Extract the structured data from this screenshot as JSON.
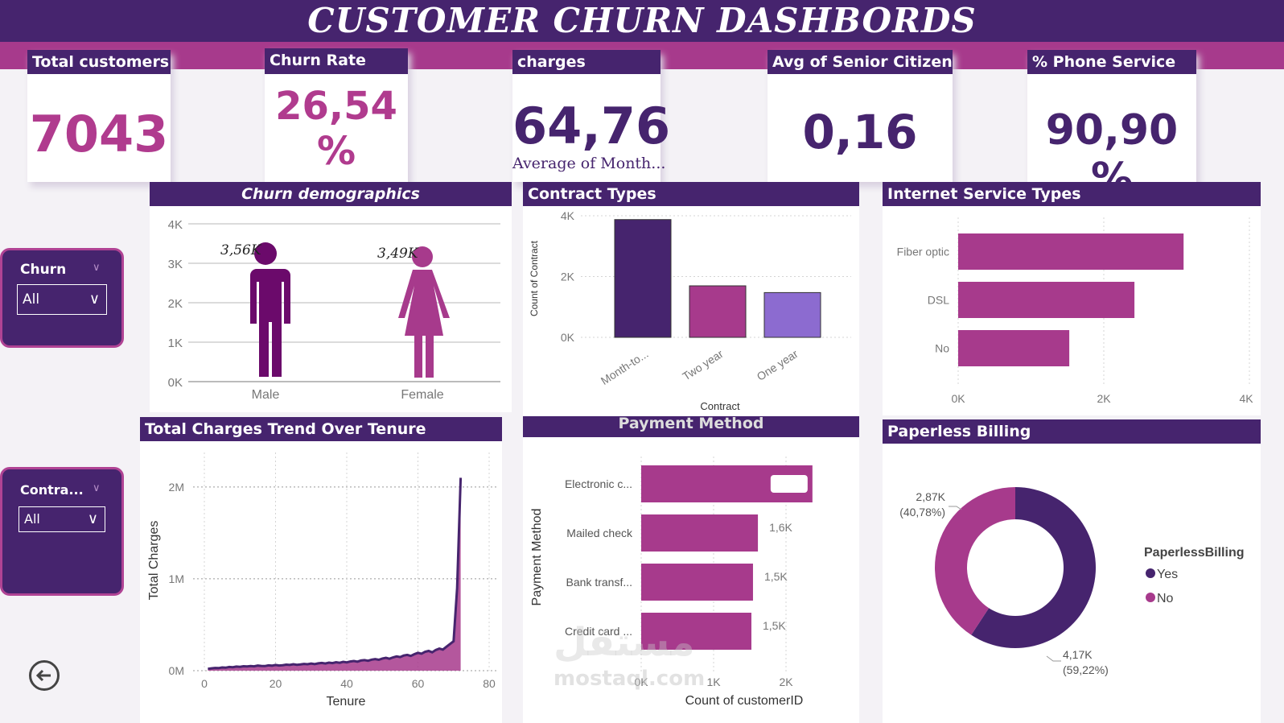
{
  "title": "CUSTOMER CHURN DASHBORDS",
  "kpis": {
    "total_customers": {
      "label": "Total customers",
      "value": "7043"
    },
    "churn_rate": {
      "label": "Churn Rate",
      "value_line1": "26,54",
      "value_line2": "%"
    },
    "charges": {
      "label": "charges",
      "value": "64,76",
      "sub": "Average of Month..."
    },
    "senior": {
      "label": "Avg of Senior Citizen",
      "value": "0,16"
    },
    "phone": {
      "label": "% Phone Service",
      "value": "90,90 %"
    }
  },
  "slicers": {
    "churn": {
      "title": "Churn",
      "value": "All"
    },
    "contract": {
      "title": "Contra...",
      "value": "All"
    }
  },
  "colors": {
    "dark_purple": "#46246e",
    "magenta": "#a73a8c",
    "light_purple": "#8c6bd0",
    "figure_male": "#6b0a6b"
  },
  "churn_demographics": {
    "title": "Churn demographics",
    "yticks": [
      "4K",
      "3K",
      "2K",
      "1K",
      "0K"
    ],
    "male": {
      "label": "Male",
      "value_label": "3,56K"
    },
    "female": {
      "label": "Female",
      "value_label": "3,49K"
    }
  },
  "contract_types": {
    "title": "Contract Types",
    "ylabel": "Count of Contract",
    "xlabel": "Contract",
    "yticks": [
      "4K",
      "2K",
      "0K"
    ],
    "categories": [
      "Month-to...",
      "Two year",
      "One year"
    ]
  },
  "internet_service": {
    "title": "Internet Service Types",
    "categories": [
      "Fiber optic",
      "DSL",
      "No"
    ],
    "xticks": [
      "0K",
      "2K",
      "4K"
    ]
  },
  "total_charges": {
    "title": "Total Charges Trend Over Tenure",
    "ylabel": "Total Charges",
    "xlabel": "Tenure",
    "yticks": [
      "2M",
      "1M",
      "0M"
    ],
    "xticks": [
      "0",
      "20",
      "40",
      "60",
      "80"
    ]
  },
  "payment_method": {
    "title": "Payment Method",
    "ylabel": "Payment Method",
    "xlabel": "Count of customerID",
    "categories": [
      "Electronic c...",
      "Mailed check",
      "Bank transf...",
      "Credit card ..."
    ],
    "value_labels": [
      "",
      "1,6K",
      "1,5K",
      "1,5K"
    ],
    "xticks": [
      "0K",
      "1K",
      "2K"
    ]
  },
  "paperless": {
    "title": "Paperless Billing",
    "legend_title": "PaperlessBilling",
    "legend": [
      "Yes",
      "No"
    ],
    "no_label_1": "2,87K",
    "no_label_2": "(40,78%)",
    "yes_label_1": "4,17K",
    "yes_label_2": "(59,22%)"
  },
  "watermark": {
    "arabic": "مستقل",
    "latin": "mostaql.com"
  },
  "chart_data": [
    {
      "type": "bar",
      "title": "Churn demographics",
      "categories": [
        "Male",
        "Female"
      ],
      "values": [
        3555,
        3488
      ],
      "ylim": [
        0,
        4000
      ],
      "grid": true
    },
    {
      "type": "bar",
      "title": "Contract Types",
      "categories": [
        "Month-to...",
        "Two year",
        "One year"
      ],
      "values": [
        3875,
        1695,
        1473
      ],
      "xlabel": "Contract",
      "ylabel": "Count of Contract",
      "ylim": [
        0,
        4000
      ],
      "grid": true
    },
    {
      "type": "bar",
      "title": "Internet Service Types",
      "categories": [
        "Fiber optic",
        "DSL",
        "No"
      ],
      "values": [
        3096,
        2421,
        1526
      ],
      "xlim": [
        0,
        4000
      ]
    },
    {
      "type": "area",
      "title": "Total Charges Trend Over Tenure",
      "xlabel": "Tenure",
      "ylabel": "Total Charges",
      "xlim": [
        0,
        80
      ],
      "ylim": [
        0,
        2200000
      ],
      "x": [
        1,
        2,
        3,
        4,
        5,
        6,
        7,
        8,
        9,
        10,
        11,
        12,
        13,
        14,
        15,
        16,
        17,
        18,
        19,
        20,
        21,
        22,
        23,
        24,
        25,
        26,
        27,
        28,
        29,
        30,
        31,
        32,
        33,
        34,
        35,
        36,
        37,
        38,
        39,
        40,
        41,
        42,
        43,
        44,
        45,
        46,
        47,
        48,
        49,
        50,
        51,
        52,
        53,
        54,
        55,
        56,
        57,
        58,
        59,
        60,
        61,
        62,
        63,
        64,
        65,
        66,
        67,
        68,
        69,
        70,
        71,
        72
      ],
      "values": [
        20000,
        25000,
        30000,
        28000,
        35000,
        32000,
        40000,
        38000,
        45000,
        42000,
        48000,
        46000,
        50000,
        47000,
        55000,
        52000,
        50000,
        58000,
        54000,
        62000,
        56000,
        60000,
        66000,
        62000,
        70000,
        64000,
        68000,
        74000,
        70000,
        78000,
        72000,
        80000,
        84000,
        78000,
        88000,
        82000,
        92000,
        86000,
        96000,
        90000,
        100000,
        105000,
        98000,
        110000,
        115000,
        108000,
        120000,
        125000,
        118000,
        132000,
        140000,
        130000,
        145000,
        155000,
        148000,
        165000,
        172000,
        160000,
        180000,
        195000,
        185000,
        205000,
        215000,
        200000,
        225000,
        240000,
        230000,
        260000,
        290000,
        320000,
        900000,
        2100000
      ],
      "grid": true
    },
    {
      "type": "bar",
      "title": "Payment Method",
      "categories": [
        "Electronic c...",
        "Mailed check",
        "Bank transf...",
        "Credit card ..."
      ],
      "values": [
        2365,
        1612,
        1544,
        1522
      ],
      "xlabel": "Count of customerID",
      "ylabel": "Payment Method",
      "xlim": [
        0,
        2500
      ]
    },
    {
      "type": "pie",
      "title": "Paperless Billing",
      "categories": [
        "Yes",
        "No"
      ],
      "values": [
        4171,
        2872
      ],
      "legend": "right"
    }
  ]
}
